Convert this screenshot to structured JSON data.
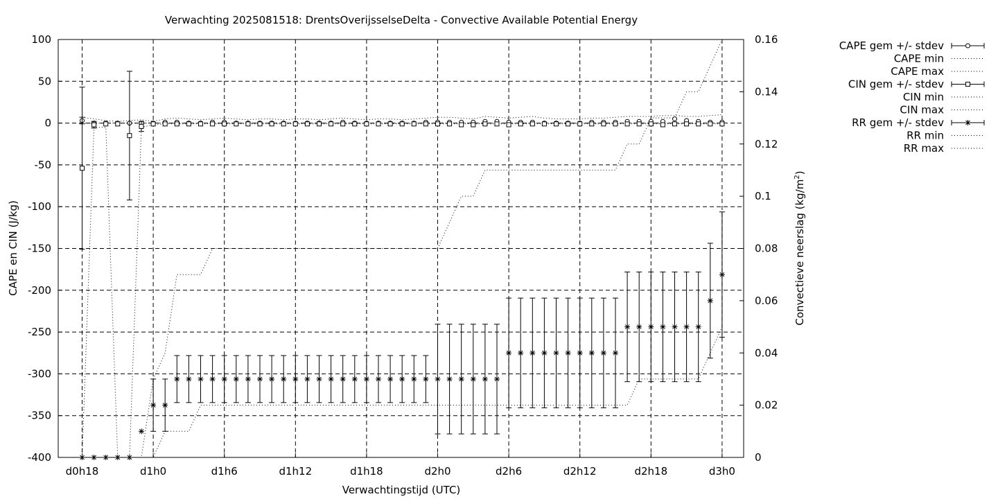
{
  "chart_data": {
    "type": "line",
    "title": "Verwachting 2025081518: DrentsOverijsselseDelta - Convective Available Potential Energy",
    "xlabel": "Verwachtingstijd (UTC)",
    "ylabel": "CAPE en CIN (J/kg)",
    "y2label": "Convectieve neerslag (kg/m",
    "y2label_sup": "2",
    "y2label_end": ")",
    "xlim": [
      0,
      57
    ],
    "ylim": [
      -400,
      100
    ],
    "y2lim": [
      0,
      0.16
    ],
    "grid": true,
    "legend_position": "top-right, outside plot",
    "x_ticks": [
      {
        "x": 0,
        "label": "d0h18"
      },
      {
        "x": 6,
        "label": "d1h0"
      },
      {
        "x": 12,
        "label": "d1h6"
      },
      {
        "x": 18,
        "label": "d1h12"
      },
      {
        "x": 24,
        "label": "d1h18"
      },
      {
        "x": 30,
        "label": "d2h0"
      },
      {
        "x": 36,
        "label": "d2h6"
      },
      {
        "x": 42,
        "label": "d2h12"
      },
      {
        "x": 48,
        "label": "d2h18"
      },
      {
        "x": 54,
        "label": "d3h0"
      }
    ],
    "y_ticks": [
      100,
      50,
      0,
      -50,
      -100,
      -150,
      -200,
      -250,
      -300,
      -350,
      -400
    ],
    "y2_ticks": [
      "0",
      "0.02",
      "0.04",
      "0.06",
      "0.08",
      "0.1",
      "0.12",
      "0.14",
      "0.16"
    ],
    "x": [
      0,
      1,
      2,
      3,
      4,
      5,
      6,
      7,
      8,
      9,
      10,
      11,
      12,
      13,
      14,
      15,
      16,
      17,
      18,
      19,
      20,
      21,
      22,
      23,
      24,
      25,
      26,
      27,
      28,
      29,
      30,
      31,
      32,
      33,
      34,
      35,
      36,
      37,
      38,
      39,
      40,
      41,
      42,
      43,
      44,
      45,
      46,
      47,
      48,
      49,
      50,
      51,
      52,
      53,
      54
    ],
    "series": [
      {
        "name": "CAPE gem +/- stdev",
        "axis": "y",
        "marker": "circle",
        "errorbars": true,
        "values": [
          3,
          0,
          0,
          0,
          0,
          0,
          0,
          1,
          1,
          0,
          0,
          1,
          1,
          0,
          0,
          0,
          0,
          0,
          0,
          0,
          0,
          0,
          1,
          0,
          0,
          0,
          0,
          0,
          0,
          1,
          1,
          1,
          1,
          1,
          2,
          2,
          1,
          1,
          1,
          0,
          0,
          0,
          0,
          1,
          1,
          1,
          2,
          2,
          2,
          2,
          5,
          3,
          2,
          1,
          1
        ],
        "error": [
          4,
          0,
          0,
          0,
          0,
          0,
          0,
          0,
          0,
          0,
          0,
          0,
          0,
          0,
          0,
          0,
          0,
          0,
          0,
          0,
          0,
          0,
          0,
          0,
          0,
          0,
          0,
          0,
          0,
          0,
          0,
          0,
          0,
          0,
          0,
          0,
          0,
          0,
          0,
          0,
          0,
          0,
          0,
          0,
          0,
          0,
          0,
          0,
          0,
          0,
          0,
          0,
          0,
          0,
          0
        ]
      },
      {
        "name": "CAPE min",
        "axis": "y",
        "style": "dotted",
        "values": [
          0,
          0,
          0,
          0,
          0,
          0,
          0,
          0,
          0,
          0,
          0,
          0,
          0,
          0,
          0,
          0,
          0,
          0,
          0,
          0,
          0,
          0,
          0,
          0,
          0,
          0,
          0,
          0,
          0,
          0,
          0,
          0,
          0,
          0,
          0,
          0,
          0,
          0,
          0,
          0,
          0,
          0,
          0,
          0,
          0,
          0,
          0,
          0,
          0,
          0,
          0,
          0,
          0,
          0,
          0
        ]
      },
      {
        "name": "CAPE max",
        "axis": "y",
        "style": "dotted",
        "values": [
          7,
          5,
          3,
          2,
          3,
          4,
          2,
          5,
          6,
          5,
          4,
          5,
          6,
          5,
          4,
          5,
          5,
          4,
          5,
          5,
          4,
          5,
          6,
          5,
          4,
          5,
          5,
          4,
          5,
          6,
          7,
          7,
          6,
          5,
          8,
          7,
          6,
          7,
          8,
          6,
          5,
          5,
          5,
          6,
          6,
          7,
          8,
          8,
          8,
          9,
          9,
          8,
          8,
          9,
          10
        ]
      },
      {
        "name": "CIN gem +/- stdev",
        "axis": "y",
        "marker": "square",
        "errorbars": true,
        "values": [
          -54,
          -2,
          -1,
          -1,
          -15,
          -4,
          -1,
          -1,
          -1,
          -1,
          -1,
          -1,
          -1,
          -1,
          -1,
          -1,
          -1,
          -1,
          -1,
          -1,
          -1,
          -1,
          -1,
          -1,
          -1,
          -1,
          -1,
          -1,
          -1,
          -1,
          -1,
          -1,
          -2,
          -2,
          -1,
          -1,
          -2,
          -1,
          -1,
          -1,
          -1,
          -1,
          -1,
          -1,
          -1,
          -1,
          -1,
          -1,
          -1,
          -2,
          -1,
          -1,
          -1,
          -1,
          -1
        ],
        "error": [
          97,
          4,
          0,
          0,
          77,
          6,
          0,
          0,
          0,
          0,
          0,
          0,
          0,
          0,
          0,
          0,
          0,
          0,
          0,
          0,
          0,
          0,
          0,
          0,
          0,
          0,
          0,
          0,
          0,
          0,
          0,
          0,
          0,
          0,
          0,
          0,
          0,
          0,
          0,
          0,
          0,
          0,
          0,
          0,
          0,
          0,
          0,
          0,
          0,
          0,
          0,
          0,
          0,
          0,
          0
        ]
      },
      {
        "name": "CIN min",
        "axis": "y",
        "style": "dotted",
        "values": [
          -400,
          -5,
          -5,
          -400,
          -400,
          -5,
          -2,
          -1,
          -1,
          -1,
          -1,
          -1,
          -1,
          -1,
          -1,
          -1,
          -1,
          -1,
          -1,
          -1,
          -1,
          -1,
          -1,
          -1,
          -1,
          -1,
          -1,
          -1,
          -1,
          -1,
          -1,
          -1,
          -1,
          -1,
          -1,
          -1,
          -1,
          -1,
          -1,
          -1,
          -1,
          -1,
          -1,
          -1,
          -1,
          -1,
          -1,
          -1,
          -1,
          -1,
          -1,
          -1,
          -1,
          -1,
          -1
        ]
      },
      {
        "name": "CIN max",
        "axis": "y",
        "style": "dotted",
        "values": [
          0,
          0,
          0,
          0,
          0,
          0,
          0,
          0,
          0,
          0,
          0,
          0,
          0,
          0,
          0,
          0,
          0,
          0,
          0,
          0,
          0,
          0,
          0,
          0,
          0,
          0,
          0,
          0,
          0,
          0,
          0,
          0,
          0,
          0,
          0,
          0,
          0,
          0,
          0,
          0,
          0,
          0,
          0,
          0,
          0,
          0,
          0,
          0,
          0,
          0,
          0,
          0,
          0,
          0,
          0
        ]
      },
      {
        "name": "RR gem +/- stdev",
        "axis": "y2",
        "marker": "star",
        "errorbars": true,
        "values": [
          0,
          0,
          0,
          0,
          0,
          0.01,
          0.02,
          0.02,
          0.03,
          0.03,
          0.03,
          0.03,
          0.03,
          0.03,
          0.03,
          0.03,
          0.03,
          0.03,
          0.03,
          0.03,
          0.03,
          0.03,
          0.03,
          0.03,
          0.03,
          0.03,
          0.03,
          0.03,
          0.03,
          0.03,
          0.03,
          0.03,
          0.03,
          0.03,
          0.03,
          0.03,
          0.04,
          0.04,
          0.04,
          0.04,
          0.04,
          0.04,
          0.04,
          0.04,
          0.04,
          0.04,
          0.05,
          0.05,
          0.05,
          0.05,
          0.05,
          0.05,
          0.05,
          0.06,
          0.07
        ],
        "error": [
          0,
          0,
          0,
          0,
          0,
          0,
          0.01,
          0.01,
          0.009,
          0.009,
          0.009,
          0.009,
          0.009,
          0.009,
          0.009,
          0.009,
          0.009,
          0.009,
          0.009,
          0.009,
          0.009,
          0.009,
          0.009,
          0.009,
          0.009,
          0.009,
          0.009,
          0.009,
          0.009,
          0.009,
          0.021,
          0.021,
          0.021,
          0.021,
          0.021,
          0.021,
          0.021,
          0.021,
          0.021,
          0.021,
          0.021,
          0.021,
          0.021,
          0.021,
          0.021,
          0.021,
          0.021,
          0.021,
          0.021,
          0.021,
          0.021,
          0.021,
          0.021,
          0.022,
          0.024
        ]
      },
      {
        "name": "RR min",
        "axis": "y2",
        "style": "dotted",
        "values": [
          0,
          0,
          0,
          0,
          0,
          0,
          0,
          0.01,
          0.01,
          0.01,
          0.02,
          0.02,
          0.02,
          0.02,
          0.02,
          0.02,
          0.02,
          0.02,
          0.02,
          0.02,
          0.02,
          0.02,
          0.02,
          0.02,
          0.02,
          0.02,
          0.02,
          0.02,
          0.02,
          0.02,
          0.02,
          0.02,
          0.02,
          0.02,
          0.02,
          0.02,
          0.02,
          0.02,
          0.02,
          0.02,
          0.02,
          0.02,
          0.02,
          0.02,
          0.02,
          0.02,
          0.02,
          0.03,
          0.03,
          0.03,
          0.03,
          0.03,
          0.03,
          0.04,
          0.05
        ]
      },
      {
        "name": "RR max",
        "axis": "y2",
        "style": "dotted",
        "values": [
          0,
          0,
          0,
          0,
          0,
          0,
          0.03,
          0.04,
          0.07,
          0.07,
          0.07,
          0.08,
          0.08,
          0.08,
          0.08,
          0.08,
          0.08,
          0.08,
          0.08,
          0.08,
          0.08,
          0.08,
          0.08,
          0.08,
          0.08,
          0.08,
          0.08,
          0.08,
          0.08,
          0.08,
          0.08,
          0.09,
          0.1,
          0.1,
          0.11,
          0.11,
          0.11,
          0.11,
          0.11,
          0.11,
          0.11,
          0.11,
          0.11,
          0.11,
          0.11,
          0.11,
          0.12,
          0.12,
          0.13,
          0.13,
          0.13,
          0.14,
          0.14,
          0.15,
          0.16
        ]
      }
    ]
  }
}
